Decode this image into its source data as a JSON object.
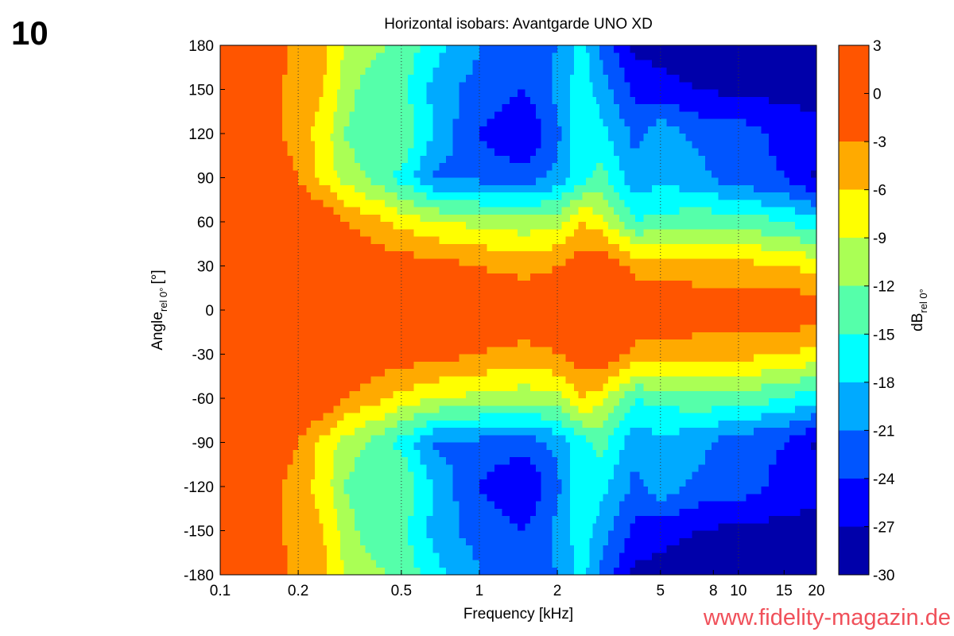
{
  "figure_number": "10",
  "watermark": "www.fidelity-magazin.de",
  "chart_data": {
    "type": "heatmap",
    "subtype": "filled-contour",
    "title": "Horizontal isobars: Avantgarde  UNO XD",
    "xlabel": "Frequency [kHz]",
    "ylabel_main": "Angle",
    "ylabel_sub": "rel 0°",
    "ylabel_unit": "[°]",
    "x_scale": "log",
    "xlim": [
      0.1,
      20
    ],
    "ylim": [
      -180,
      180
    ],
    "x_ticks": [
      0.1,
      0.2,
      0.5,
      1,
      2,
      5,
      8,
      10,
      15,
      20
    ],
    "x_tick_labels": [
      "0.1",
      "0.2",
      "0.5",
      "1",
      "2",
      "5",
      "8",
      "10",
      "15",
      "20"
    ],
    "x_grid": [
      0.2,
      0.5,
      1,
      2,
      5,
      10
    ],
    "y_ticks": [
      180,
      150,
      120,
      90,
      60,
      30,
      0,
      -30,
      -60,
      -90,
      -120,
      -150,
      -180
    ],
    "y_tick_labels": [
      "180",
      "150",
      "120",
      "90",
      "60",
      "30",
      "0",
      "-30",
      "-60",
      "-90",
      "-120",
      "-150",
      "-180"
    ],
    "colorbar": {
      "label_main": "dB",
      "label_sub": "rel 0°",
      "levels": [
        3,
        0,
        -3,
        -6,
        -9,
        -12,
        -15,
        -18,
        -21,
        -24,
        -27,
        -30
      ],
      "level_labels": [
        "3",
        "0",
        "-3",
        "-6",
        "-9",
        "-12",
        "-15",
        "-18",
        "-21",
        "-24",
        "-27",
        "-30"
      ],
      "bands": [
        {
          "from": -3,
          "to": 3,
          "color": "#ff5500"
        },
        {
          "from": -6,
          "to": -3,
          "color": "#ffaa00"
        },
        {
          "from": -9,
          "to": -6,
          "color": "#ffff00"
        },
        {
          "from": -12,
          "to": -9,
          "color": "#aaff55"
        },
        {
          "from": -15,
          "to": -12,
          "color": "#55ffaa"
        },
        {
          "from": -18,
          "to": -15,
          "color": "#00ffff"
        },
        {
          "from": -21,
          "to": -18,
          "color": "#00aaff"
        },
        {
          "from": -24,
          "to": -21,
          "color": "#0055ff"
        },
        {
          "from": -27,
          "to": -24,
          "color": "#0000ff"
        },
        {
          "from": -30,
          "to": -27,
          "color": "#0000aa"
        }
      ]
    },
    "x": [
      0.1,
      0.15,
      0.2,
      0.25,
      0.3,
      0.4,
      0.5,
      0.7,
      1,
      1.5,
      2,
      2.5,
      3,
      4,
      5,
      7,
      10,
      15,
      20
    ],
    "y": [
      180,
      150,
      120,
      90,
      60,
      30,
      0,
      -30,
      -60,
      -90,
      -120,
      -150,
      -180
    ],
    "z": [
      [
        0,
        -1,
        -4,
        -5,
        -9,
        -11,
        -13,
        -17,
        -21,
        -23,
        -21,
        -17,
        -22,
        -28,
        -28,
        -29,
        -29,
        -29,
        -29
      ],
      [
        0,
        -2,
        -4,
        -6,
        -10,
        -15,
        -14,
        -20,
        -22,
        -24,
        -20,
        -16,
        -20,
        -25,
        -26,
        -27,
        -28,
        -28,
        -29
      ],
      [
        0,
        -1,
        -5,
        -7,
        -12,
        -15,
        -12,
        -19,
        -24,
        -27,
        -22,
        -15,
        -17,
        -22,
        -19,
        -22,
        -22,
        -25,
        -25
      ],
      [
        0,
        0,
        -3,
        -7,
        -10,
        -13,
        -16,
        -22,
        -22,
        -23,
        -20,
        -16,
        -14,
        -20,
        -19,
        -20,
        -23,
        -24,
        -28
      ],
      [
        0,
        0,
        0,
        0,
        -3,
        -5,
        -7,
        -9,
        -10,
        -11,
        -10,
        -6,
        -8,
        -15,
        -14,
        -13,
        -13,
        -15,
        -17
      ],
      [
        0,
        0,
        0,
        0,
        0,
        -1,
        -1,
        -2,
        -3,
        -4,
        -3,
        -1,
        0,
        -4,
        -4,
        -5,
        -5,
        -6,
        -7
      ],
      [
        -0.5,
        -0.5,
        -0.5,
        -0.5,
        -0.5,
        -0.5,
        -0.5,
        -0.5,
        -0.5,
        -0.5,
        -0.5,
        -0.5,
        -0.5,
        -0.5,
        -0.5,
        -0.5,
        -0.5,
        -0.5,
        -0.5
      ],
      [
        0,
        0,
        0,
        0,
        0,
        -1,
        -1,
        -2,
        -3,
        -4,
        -3,
        -1,
        0,
        -4,
        -4,
        -5,
        -5,
        -6,
        -7
      ],
      [
        0,
        0,
        0,
        0,
        -3,
        -5,
        -7,
        -9,
        -10,
        -11,
        -10,
        -6,
        -8,
        -15,
        -14,
        -13,
        -13,
        -15,
        -17
      ],
      [
        0,
        0,
        -3,
        -7,
        -10,
        -13,
        -16,
        -22,
        -22,
        -23,
        -20,
        -16,
        -14,
        -20,
        -19,
        -20,
        -23,
        -24,
        -28
      ],
      [
        0,
        -1,
        -5,
        -7,
        -12,
        -15,
        -12,
        -19,
        -24,
        -27,
        -22,
        -15,
        -17,
        -22,
        -19,
        -22,
        -22,
        -25,
        -25
      ],
      [
        0,
        -2,
        -4,
        -6,
        -10,
        -15,
        -14,
        -20,
        -22,
        -24,
        -20,
        -16,
        -20,
        -25,
        -26,
        -27,
        -28,
        -28,
        -29
      ],
      [
        0,
        -1,
        -4,
        -5,
        -9,
        -11,
        -13,
        -17,
        -21,
        -23,
        -21,
        -17,
        -22,
        -28,
        -28,
        -29,
        -29,
        -29,
        -29
      ]
    ]
  }
}
